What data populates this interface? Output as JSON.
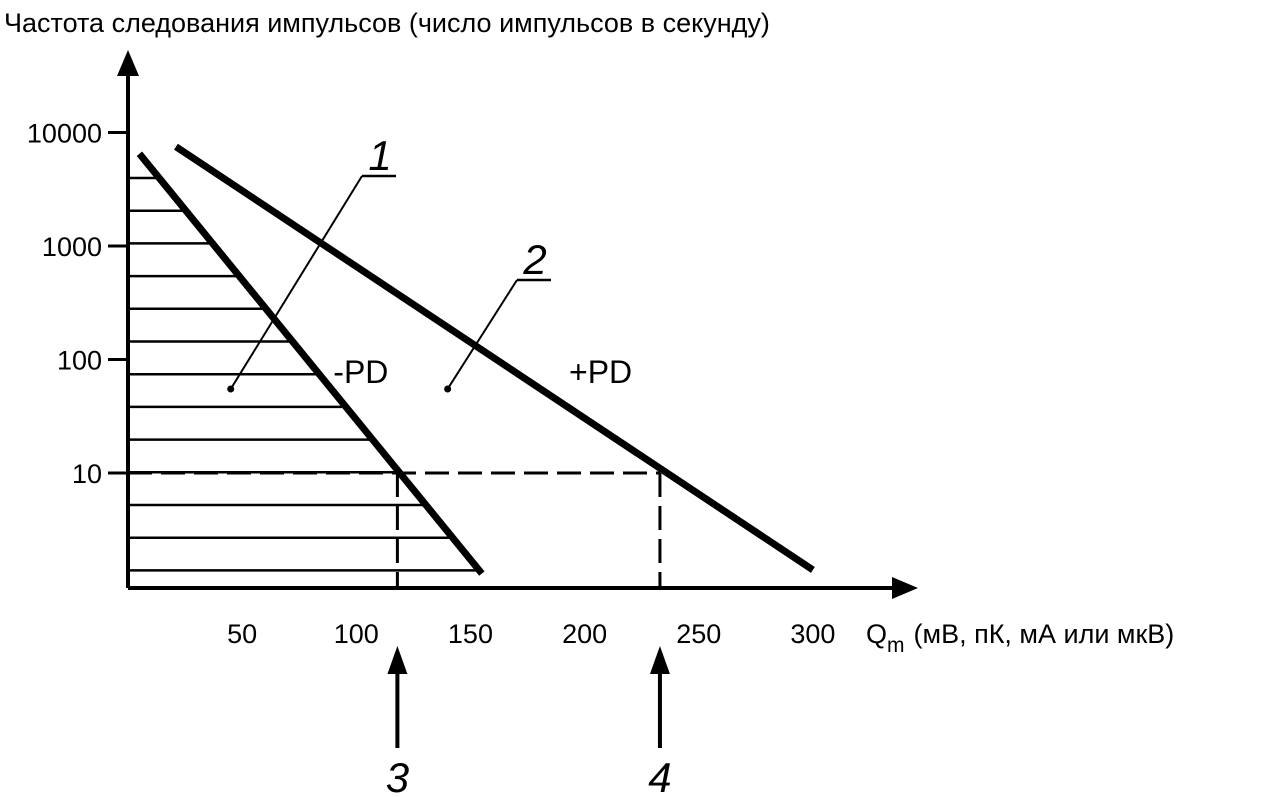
{
  "chart_data": {
    "type": "line",
    "title": "",
    "ylabel": "Частота следования импульсов (число импульсов в секунду)",
    "xlabel": {
      "main": "Q",
      "subscript": "m",
      "units": "(мВ, пК, мА или мкВ)"
    },
    "y_scale": "log",
    "y_ticks": [
      10,
      100,
      1000,
      10000
    ],
    "y_tick_labels": [
      "10",
      "100",
      "1000",
      "10000"
    ],
    "x_ticks": [
      50,
      100,
      150,
      200,
      250,
      300
    ],
    "x_tick_labels": [
      "50",
      "100",
      "150",
      "200",
      "250",
      "300"
    ],
    "xlim": [
      0,
      350
    ],
    "ylim": [
      1,
      100000
    ],
    "series": [
      {
        "name": "-PD",
        "x": [
          5,
          155
        ],
        "y": [
          6500,
          1.3
        ]
      },
      {
        "name": "+PD",
        "x": [
          21,
          300
        ],
        "y": [
          7500,
          1.4
        ]
      }
    ],
    "reference_level": {
      "y": 10
    },
    "reference_points": [
      {
        "x": 118,
        "y": 10,
        "marker": "3"
      },
      {
        "x": 233,
        "y": 10,
        "marker": "4"
      }
    ],
    "hatched_region": {
      "below_series": "-PD"
    },
    "callouts": [
      {
        "label": "1",
        "point": {
          "x": 45,
          "y": 55
        }
      },
      {
        "label": "2",
        "point": {
          "x": 140,
          "y": 55
        }
      }
    ],
    "grid": false,
    "legend": "none"
  }
}
